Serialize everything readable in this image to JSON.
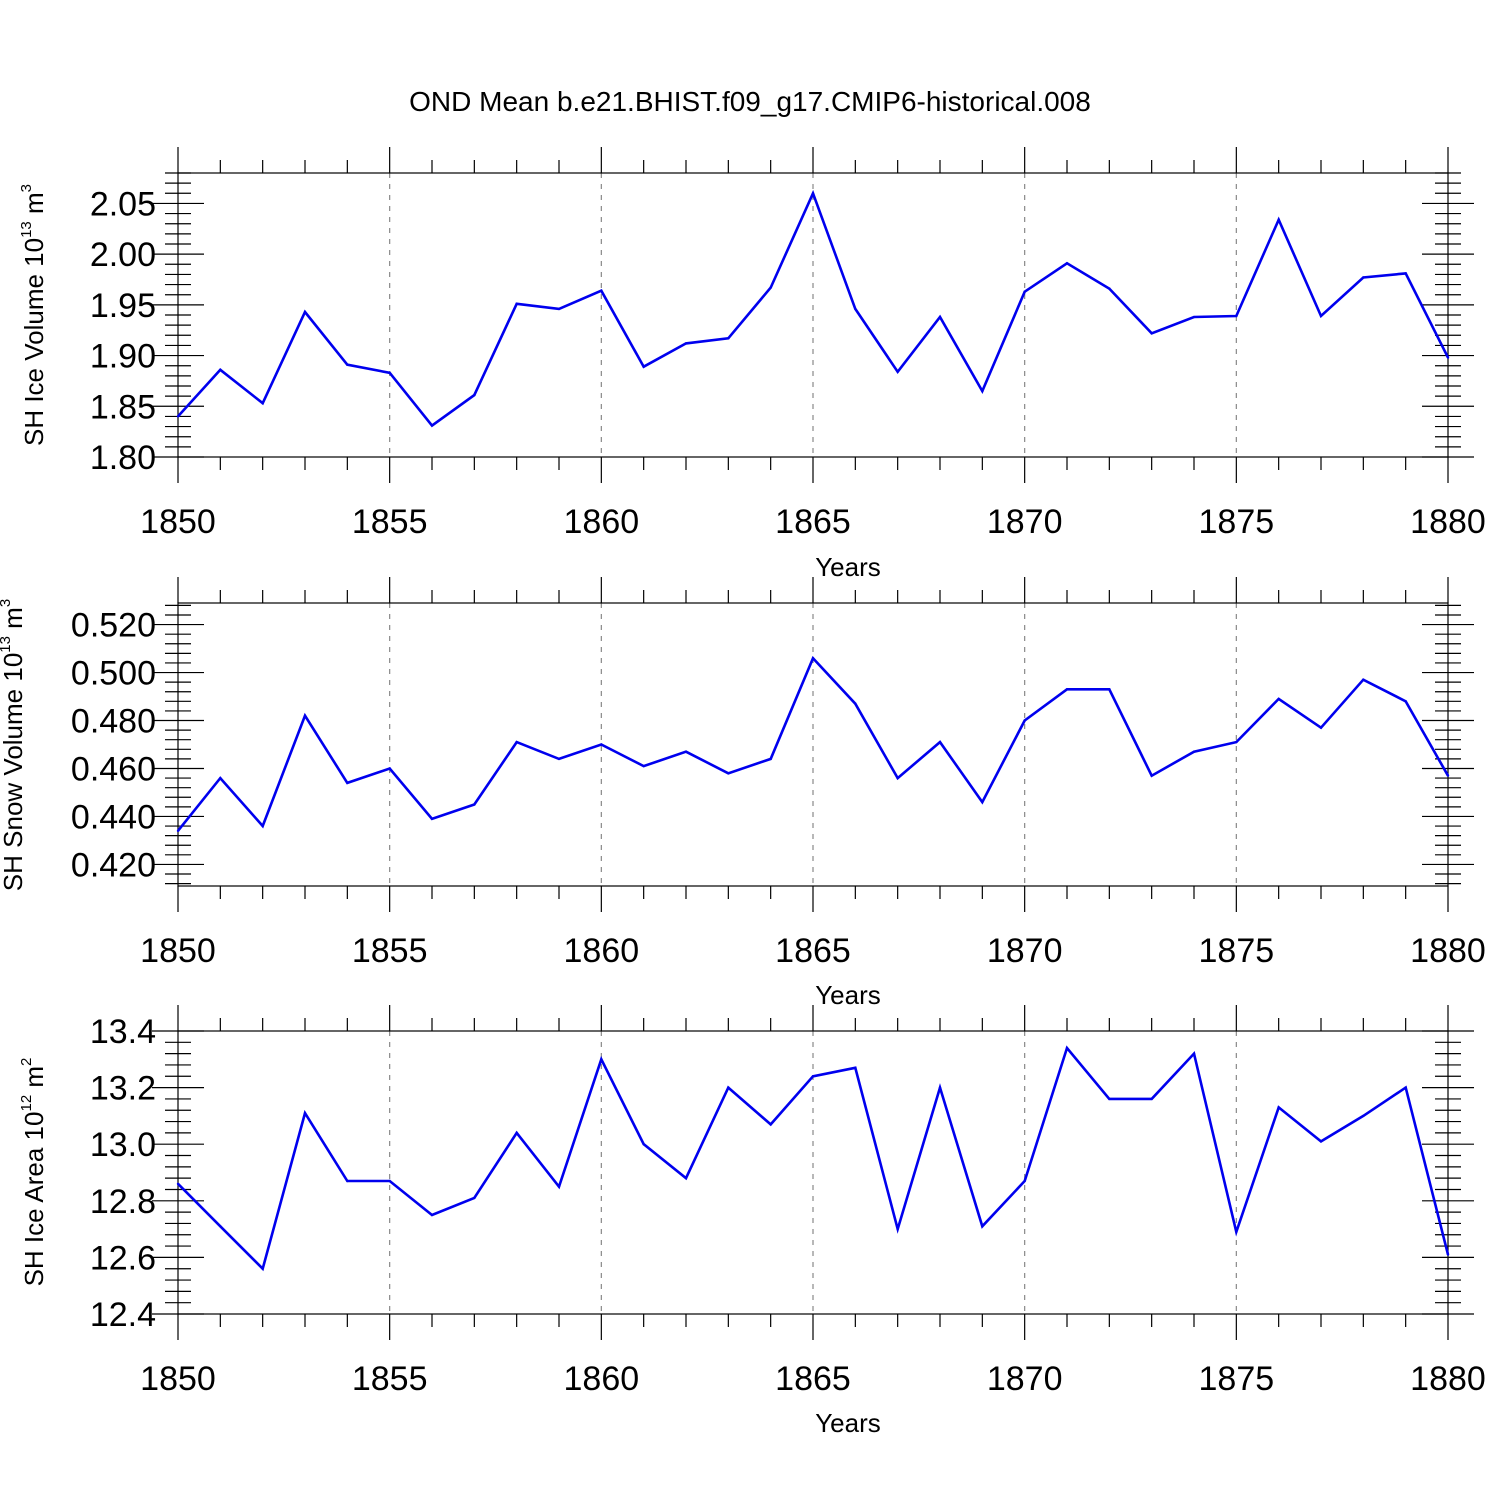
{
  "title": "OND Mean b.e21.BHIST.f09_g17.CMIP6-historical.008",
  "colors": {
    "series": "#0000ee",
    "grid": "#888888",
    "axis": "#000000"
  },
  "chart_data": [
    {
      "type": "line",
      "xlabel": "Years",
      "ylabel": {
        "main": "SH Ice Volume 10",
        "sup1": "13",
        "unit": " m",
        "sup2": "3"
      },
      "xlim": [
        1850,
        1880
      ],
      "ylim": [
        1.8,
        2.08
      ],
      "x_ticks": [
        1850,
        1855,
        1860,
        1865,
        1870,
        1875,
        1880
      ],
      "y_ticks": [
        "1.80",
        "1.85",
        "1.90",
        "1.95",
        "2.00",
        "2.05"
      ],
      "grid": "vertical dashed at major x ticks",
      "x": [
        1850,
        1851,
        1852,
        1853,
        1854,
        1855,
        1856,
        1857,
        1858,
        1859,
        1860,
        1861,
        1862,
        1863,
        1864,
        1865,
        1866,
        1867,
        1868,
        1869,
        1870,
        1871,
        1872,
        1873,
        1874,
        1875,
        1876,
        1877,
        1878,
        1879,
        1880
      ],
      "values": [
        1.84,
        1.886,
        1.853,
        1.943,
        1.891,
        1.883,
        1.831,
        1.861,
        1.951,
        1.946,
        1.964,
        1.889,
        1.912,
        1.917,
        1.967,
        2.06,
        1.946,
        1.884,
        1.938,
        1.865,
        1.963,
        1.991,
        1.966,
        1.922,
        1.938,
        1.939,
        2.034,
        1.939,
        1.977,
        1.981,
        1.898
      ]
    },
    {
      "type": "line",
      "xlabel": "Years",
      "ylabel": {
        "main": "SH Snow Volume 10",
        "sup1": "13",
        "unit": " m",
        "sup2": "3"
      },
      "xlim": [
        1850,
        1880
      ],
      "ylim": [
        0.411,
        0.529
      ],
      "x_ticks": [
        1850,
        1855,
        1860,
        1865,
        1870,
        1875,
        1880
      ],
      "y_ticks": [
        "0.420",
        "0.440",
        "0.460",
        "0.480",
        "0.500",
        "0.520"
      ],
      "grid": "vertical dashed at major x ticks",
      "x": [
        1850,
        1851,
        1852,
        1853,
        1854,
        1855,
        1856,
        1857,
        1858,
        1859,
        1860,
        1861,
        1862,
        1863,
        1864,
        1865,
        1866,
        1867,
        1868,
        1869,
        1870,
        1871,
        1872,
        1873,
        1874,
        1875,
        1876,
        1877,
        1878,
        1879,
        1880
      ],
      "values": [
        0.434,
        0.456,
        0.436,
        0.482,
        0.454,
        0.46,
        0.439,
        0.445,
        0.471,
        0.464,
        0.47,
        0.461,
        0.467,
        0.458,
        0.464,
        0.506,
        0.487,
        0.456,
        0.471,
        0.446,
        0.48,
        0.493,
        0.493,
        0.457,
        0.467,
        0.471,
        0.489,
        0.477,
        0.497,
        0.488,
        0.457
      ]
    },
    {
      "type": "line",
      "xlabel": "Years",
      "ylabel": {
        "main": "SH Ice Area 10",
        "sup1": "12",
        "unit": " m",
        "sup2": "2"
      },
      "xlim": [
        1850,
        1880
      ],
      "ylim": [
        12.4,
        13.4
      ],
      "x_ticks": [
        1850,
        1855,
        1860,
        1865,
        1870,
        1875,
        1880
      ],
      "y_ticks": [
        "12.4",
        "12.6",
        "12.8",
        "13.0",
        "13.2",
        "13.4"
      ],
      "grid": "vertical dashed at major x ticks",
      "x": [
        1850,
        1851,
        1852,
        1853,
        1854,
        1855,
        1856,
        1857,
        1858,
        1859,
        1860,
        1861,
        1862,
        1863,
        1864,
        1865,
        1866,
        1867,
        1868,
        1869,
        1870,
        1871,
        1872,
        1873,
        1874,
        1875,
        1876,
        1877,
        1878,
        1879,
        1880
      ],
      "values": [
        12.86,
        12.71,
        12.56,
        13.11,
        12.87,
        12.87,
        12.75,
        12.81,
        13.04,
        12.85,
        13.3,
        13.0,
        12.88,
        13.2,
        13.07,
        13.24,
        13.27,
        12.7,
        13.2,
        12.71,
        12.87,
        13.34,
        13.16,
        13.16,
        13.32,
        12.69,
        13.13,
        13.01,
        13.1,
        13.2,
        12.61
      ]
    }
  ]
}
